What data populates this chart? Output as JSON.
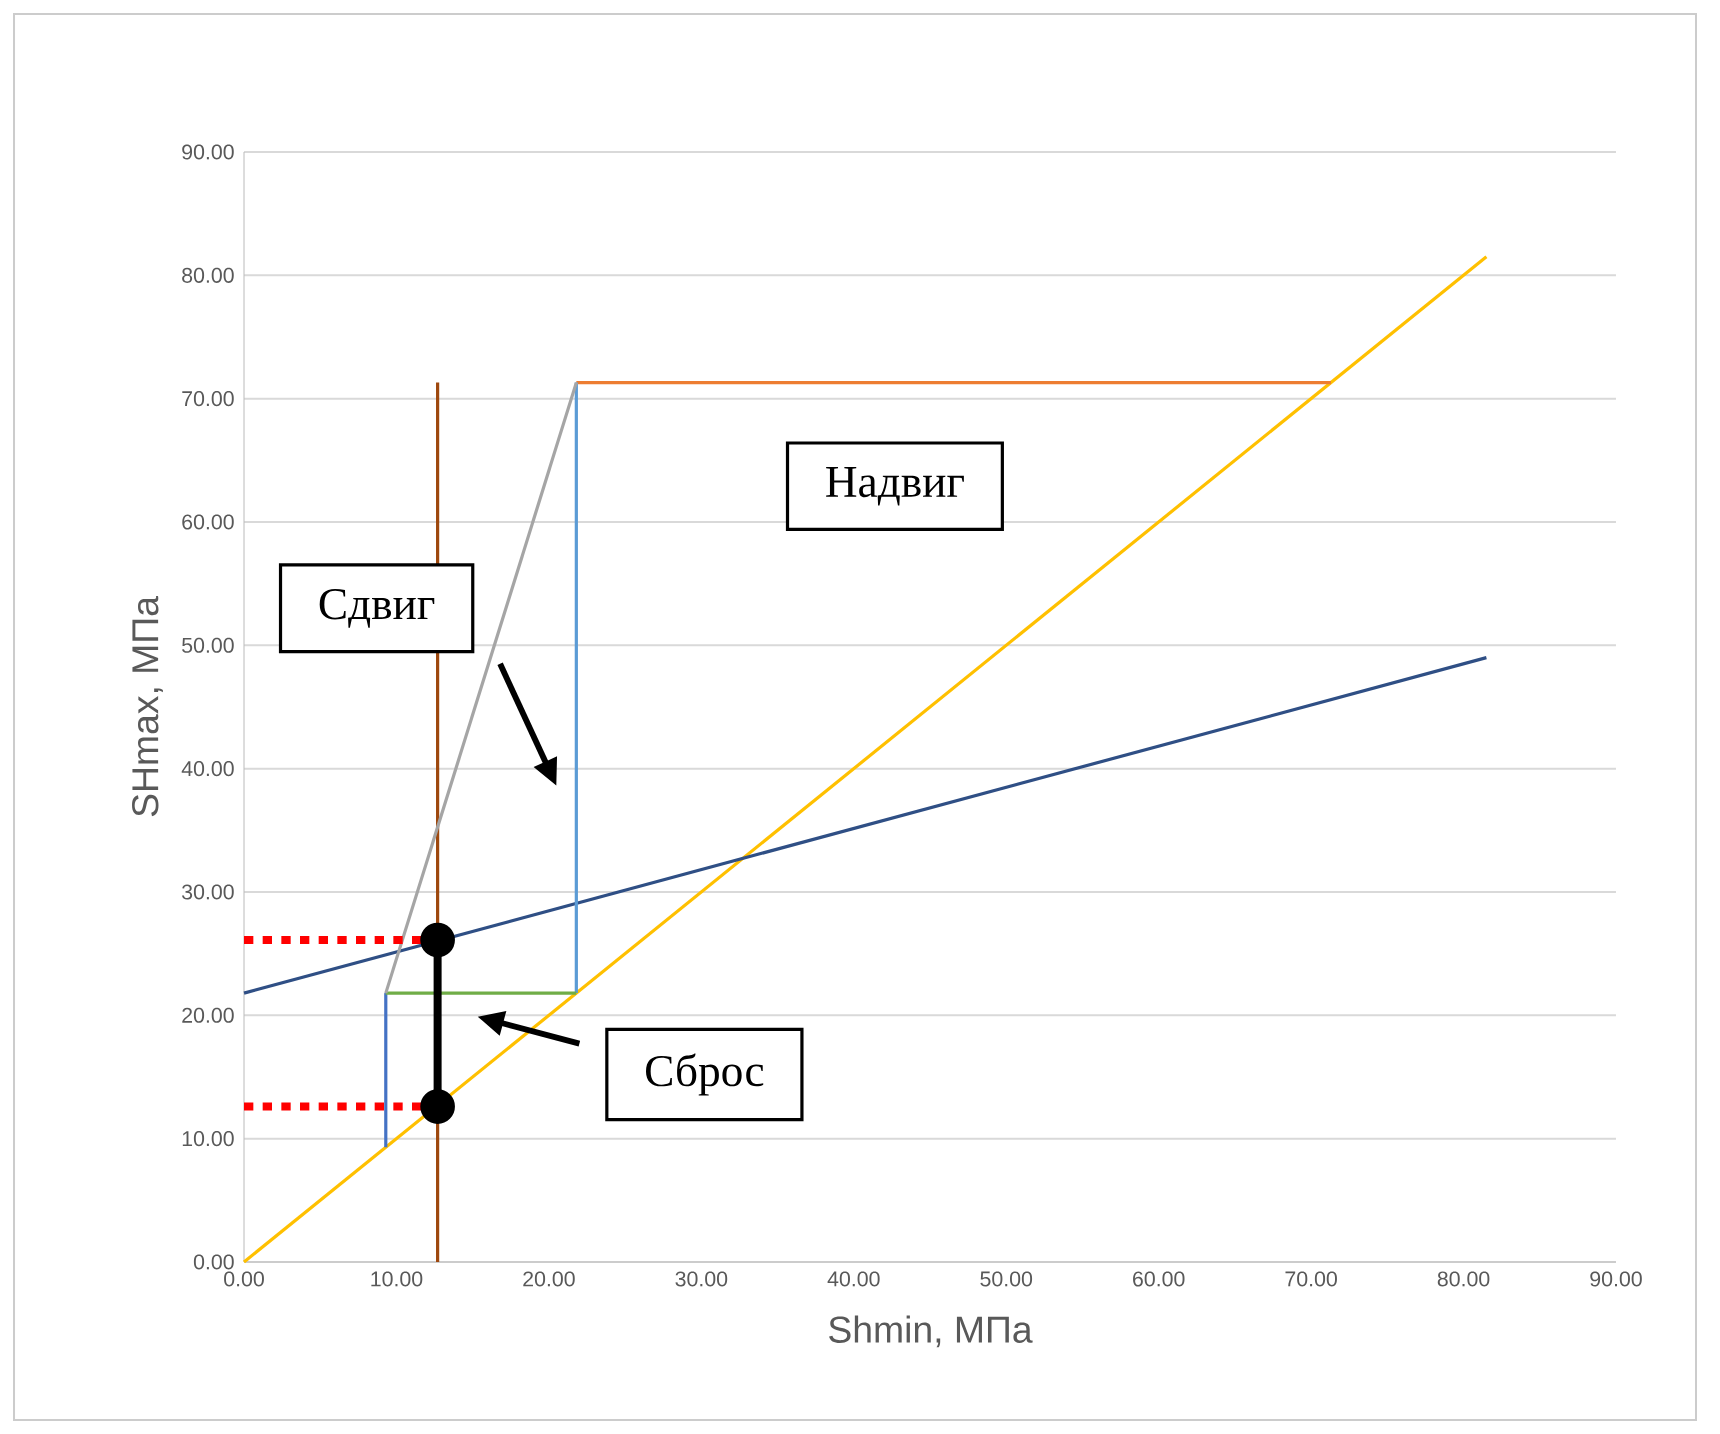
{
  "chart_data": {
    "type": "line",
    "xlabel": "Shmin, МПа",
    "ylabel": "SHmax, МПа",
    "xlim": [
      0,
      90
    ],
    "ylim": [
      0,
      90
    ],
    "xticks": [
      {
        "value": 0,
        "label": "0.00"
      },
      {
        "value": 10,
        "label": "10.00"
      },
      {
        "value": 20,
        "label": "20.00"
      },
      {
        "value": 30,
        "label": "30.00"
      },
      {
        "value": 40,
        "label": "40.00"
      },
      {
        "value": 50,
        "label": "50.00"
      },
      {
        "value": 60,
        "label": "60.00"
      },
      {
        "value": 70,
        "label": "70.00"
      },
      {
        "value": 80,
        "label": "80.00"
      },
      {
        "value": 90,
        "label": "90.00"
      }
    ],
    "yticks": [
      {
        "value": 0,
        "label": "0.00"
      },
      {
        "value": 10,
        "label": "10.00"
      },
      {
        "value": 20,
        "label": "20.00"
      },
      {
        "value": 30,
        "label": "30.00"
      },
      {
        "value": 40,
        "label": "40.00"
      },
      {
        "value": 50,
        "label": "50.00"
      },
      {
        "value": 60,
        "label": "60.00"
      },
      {
        "value": 70,
        "label": "70.00"
      },
      {
        "value": 80,
        "label": "80.00"
      },
      {
        "value": 90,
        "label": "90.00"
      }
    ],
    "grid": "y",
    "series": [
      {
        "color": "#ffc000",
        "x": [
          0,
          81.5
        ],
        "values": [
          0,
          81.5
        ]
      },
      {
        "color": "#2f4f85",
        "x": [
          0,
          81.5
        ],
        "values": [
          21.8,
          49.0
        ]
      },
      {
        "color": "#9e480e",
        "x": [
          12.7,
          12.7
        ],
        "values": [
          0,
          71.3
        ]
      },
      {
        "color": "#ed7d31",
        "x": [
          21.8,
          71.3
        ],
        "values": [
          71.3,
          71.3
        ]
      },
      {
        "color": "#5b9bd5",
        "x": [
          21.8,
          21.8
        ],
        "values": [
          21.8,
          71.3
        ]
      },
      {
        "color": "#4472c4",
        "x": [
          9.3,
          9.3
        ],
        "values": [
          9.3,
          21.8
        ]
      },
      {
        "color": "#70ad47",
        "x": [
          9.3,
          21.8
        ],
        "values": [
          21.8,
          21.8
        ]
      },
      {
        "color": "#a5a5a5",
        "x": [
          9.3,
          21.8
        ],
        "values": [
          21.8,
          71.3
        ]
      },
      {
        "color": "#ff0000",
        "line_style": "dotted",
        "x": [
          0,
          12.7
        ],
        "values": [
          26.1,
          26.1
        ]
      },
      {
        "color": "#ff0000",
        "line_style": "dotted",
        "x": [
          0,
          12.7
        ],
        "values": [
          12.6,
          12.6
        ]
      },
      {
        "color": "#000000",
        "marker": "circle",
        "x": [
          12.7,
          12.7
        ],
        "values": [
          12.6,
          26.1
        ]
      }
    ],
    "annotations": [
      "Надвиг",
      "Сдвиг",
      "Сброс"
    ]
  }
}
